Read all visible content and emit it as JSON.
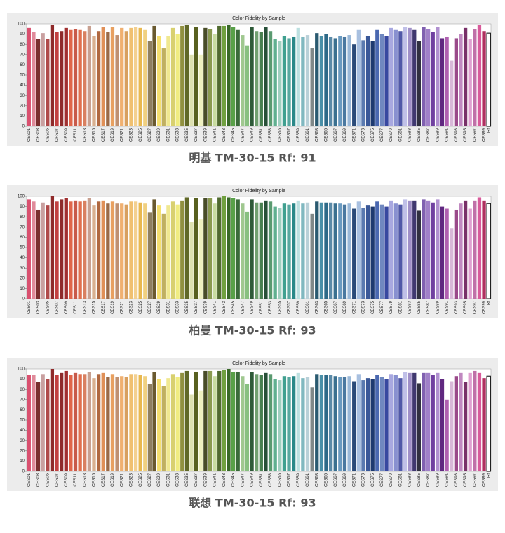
{
  "chart_data": [
    {
      "type": "bar",
      "title": "Color Fidelity by Sample",
      "caption": "明基 TM-30-15 Rf: 91",
      "categories": [
        "CES01",
        null,
        "CES03",
        null,
        "CES05",
        null,
        "CES07",
        null,
        "CES09",
        null,
        "CES11",
        null,
        "CES13",
        null,
        "CES15",
        null,
        "CES17",
        null,
        "CES19",
        null,
        "CES21",
        null,
        "CES23",
        null,
        "CES25",
        null,
        "CES27",
        null,
        "CES29",
        null,
        "CES31",
        null,
        "CES33",
        null,
        "CES35",
        null,
        "CES37",
        null,
        "CES39",
        null,
        "CES41",
        null,
        "CES43",
        null,
        "CES45",
        null,
        "CES47",
        null,
        "CES49",
        null,
        "CES51",
        null,
        "CES53",
        null,
        "CES55",
        null,
        "CES57",
        null,
        "CES59",
        null,
        "CES61",
        null,
        "CES63",
        null,
        "CES65",
        null,
        "CES67",
        null,
        "CES69",
        null,
        "CES71",
        null,
        "CES73",
        null,
        "CES75",
        null,
        "CES77",
        null,
        "CES79",
        null,
        "CES81",
        null,
        "CES83",
        null,
        "CES85",
        null,
        "CES87",
        null,
        "CES89",
        null,
        "CES91",
        null,
        "CES93",
        null,
        "CES95",
        null,
        "CES97",
        null,
        "CES99",
        "Rf"
      ],
      "values": [
        96,
        92,
        85,
        91,
        85,
        99,
        92,
        93,
        96,
        94,
        95,
        94,
        93,
        98,
        88,
        93,
        97,
        92,
        97,
        89,
        96,
        93,
        96,
        97,
        96,
        94,
        83,
        98,
        88,
        76,
        88,
        96,
        90,
        98,
        99,
        70,
        97,
        70,
        96,
        95,
        90,
        98,
        98,
        99,
        97,
        94,
        89,
        79,
        97,
        93,
        92,
        97,
        93,
        85,
        83,
        88,
        86,
        87,
        96,
        87,
        89,
        76,
        91,
        88,
        90,
        87,
        86,
        88,
        87,
        89,
        80,
        94,
        84,
        88,
        83,
        94,
        90,
        88,
        96,
        94,
        93,
        97,
        96,
        94,
        83,
        97,
        95,
        92,
        97,
        86,
        87,
        64,
        86,
        90,
        96,
        85,
        95,
        99,
        93,
        91
      ],
      "colors": [
        "#d9506f",
        "#e08a9a",
        "#7a2e2e",
        "#c9a0a0",
        "#b04a4a",
        "#8f2a2a",
        "#c24040",
        "#8e2b2b",
        "#a03030",
        "#e0664a",
        "#c85a4a",
        "#e0704e",
        "#d98060",
        "#c8a090",
        "#d8b090",
        "#b06840",
        "#e09058",
        "#9a6a48",
        "#e8a060",
        "#c09070",
        "#f0b070",
        "#d8a060",
        "#f0c070",
        "#f3d090",
        "#e8b850",
        "#f0d080",
        "#908060",
        "#6a5a30",
        "#f5e070",
        "#c0b060",
        "#f0e890",
        "#d8d070",
        "#f0ec80",
        "#909040",
        "#606828",
        "#dde0b0",
        "#586020",
        "#eef0c0",
        "#484c28",
        "#8a9a50",
        "#c8dca0",
        "#506a30",
        "#70a040",
        "#386828",
        "#58a048",
        "#3a6a3a",
        "#a0c890",
        "#88c080",
        "#2e5a38",
        "#70a070",
        "#488050",
        "#285038",
        "#5a9a70",
        "#60b090",
        "#a0d0c0",
        "#40a090",
        "#58a8a0",
        "#2a8888",
        "#bce0e0",
        "#80b8c0",
        "#b8d0d8",
        "#808888",
        "#2a5a70",
        "#4a90a8",
        "#2e6a88",
        "#5a8aa8",
        "#3a7090",
        "#6a9ac0",
        "#4a78a0",
        "#9ab8d8",
        "#2a4a78",
        "#a8c0e0",
        "#5a7ab0",
        "#3a5898",
        "#1e3a70",
        "#4a68b0",
        "#7088c0",
        "#3848a0",
        "#a8a8e0",
        "#8890d0",
        "#5058a8",
        "#c0c0e8",
        "#a090c8",
        "#403870",
        "#303040",
        "#8060b0",
        "#a080c8",
        "#7040a0",
        "#b090d0",
        "#602880",
        "#b060b0",
        "#d8b8d8",
        "#9a4a8a",
        "#c088c0",
        "#783068",
        "#e0a0d0",
        "#c070a8",
        "#d85a9a",
        "#b03060",
        "#ffffff"
      ],
      "ylim": [
        0,
        100
      ],
      "yticks": [
        0,
        10,
        20,
        30,
        40,
        50,
        60,
        70,
        80,
        90,
        100
      ]
    },
    {
      "type": "bar",
      "title": "Color Fidelity by Sample",
      "caption": "柏曼 TM-30-15 Rf: 93",
      "categories": [
        "CES01",
        null,
        "CES03",
        null,
        "CES05",
        null,
        "CES07",
        null,
        "CES09",
        null,
        "CES11",
        null,
        "CES13",
        null,
        "CES15",
        null,
        "CES17",
        null,
        "CES19",
        null,
        "CES21",
        null,
        "CES23",
        null,
        "CES25",
        null,
        "CES27",
        null,
        "CES29",
        null,
        "CES31",
        null,
        "CES33",
        null,
        "CES35",
        null,
        "CES37",
        null,
        "CES39",
        null,
        "CES41",
        null,
        "CES43",
        null,
        "CES45",
        null,
        "CES47",
        null,
        "CES49",
        null,
        "CES51",
        null,
        "CES53",
        null,
        "CES55",
        null,
        "CES57",
        null,
        "CES59",
        null,
        "CES61",
        null,
        "CES63",
        null,
        "CES65",
        null,
        "CES67",
        null,
        "CES69",
        null,
        "CES71",
        null,
        "CES73",
        null,
        "CES75",
        null,
        "CES77",
        null,
        "CES79",
        null,
        "CES81",
        null,
        "CES83",
        null,
        "CES85",
        null,
        "CES87",
        null,
        "CES89",
        null,
        "CES91",
        null,
        "CES93",
        null,
        "CES95",
        null,
        "CES97",
        null,
        "CES99",
        "Rf"
      ],
      "values": [
        97,
        95,
        87,
        94,
        91,
        100,
        95,
        97,
        98,
        95,
        96,
        95,
        96,
        98,
        91,
        95,
        96,
        93,
        95,
        93,
        93,
        92,
        95,
        95,
        94,
        93,
        84,
        97,
        91,
        83,
        91,
        95,
        92,
        96,
        99,
        75,
        98,
        78,
        98,
        98,
        93,
        99,
        100,
        99,
        98,
        97,
        93,
        85,
        97,
        94,
        94,
        96,
        95,
        90,
        89,
        93,
        92,
        93,
        96,
        93,
        94,
        83,
        95,
        94,
        94,
        94,
        93,
        93,
        92,
        93,
        88,
        95,
        89,
        91,
        90,
        95,
        92,
        90,
        96,
        93,
        92,
        97,
        96,
        96,
        86,
        97,
        96,
        94,
        97,
        90,
        88,
        69,
        87,
        93,
        96,
        88,
        96,
        99,
        96,
        93
      ],
      "colors": [
        "#d9506f",
        "#e08a9a",
        "#7a2e2e",
        "#c9a0a0",
        "#b04a4a",
        "#8f2a2a",
        "#c24040",
        "#8e2b2b",
        "#a03030",
        "#e0664a",
        "#c85a4a",
        "#e0704e",
        "#d98060",
        "#c8a090",
        "#d8b090",
        "#b06840",
        "#e09058",
        "#9a6a48",
        "#e8a060",
        "#c09070",
        "#f0b070",
        "#d8a060",
        "#f0c070",
        "#f3d090",
        "#e8b850",
        "#f0d080",
        "#908060",
        "#6a5a30",
        "#f5e070",
        "#c0b060",
        "#f0e890",
        "#d8d070",
        "#f0ec80",
        "#909040",
        "#606828",
        "#dde0b0",
        "#586020",
        "#eef0c0",
        "#484c28",
        "#8a9a50",
        "#c8dca0",
        "#506a30",
        "#70a040",
        "#386828",
        "#58a048",
        "#3a6a3a",
        "#a0c890",
        "#88c080",
        "#2e5a38",
        "#70a070",
        "#488050",
        "#285038",
        "#5a9a70",
        "#60b090",
        "#a0d0c0",
        "#40a090",
        "#58a8a0",
        "#2a8888",
        "#bce0e0",
        "#80b8c0",
        "#b8d0d8",
        "#808888",
        "#2a5a70",
        "#4a90a8",
        "#2e6a88",
        "#5a8aa8",
        "#3a7090",
        "#6a9ac0",
        "#4a78a0",
        "#9ab8d8",
        "#2a4a78",
        "#a8c0e0",
        "#5a7ab0",
        "#3a5898",
        "#1e3a70",
        "#4a68b0",
        "#7088c0",
        "#3848a0",
        "#a8a8e0",
        "#8890d0",
        "#5058a8",
        "#c0c0e8",
        "#a090c8",
        "#403870",
        "#303040",
        "#8060b0",
        "#a080c8",
        "#7040a0",
        "#b090d0",
        "#602880",
        "#b060b0",
        "#d8b8d8",
        "#9a4a8a",
        "#c088c0",
        "#783068",
        "#e0a0d0",
        "#c070a8",
        "#d85a9a",
        "#b03060",
        "#ffffff"
      ],
      "ylim": [
        0,
        100
      ],
      "yticks": [
        0,
        10,
        20,
        30,
        40,
        50,
        60,
        70,
        80,
        90,
        100
      ]
    },
    {
      "type": "bar",
      "title": "Color Fidelity by Sample",
      "caption": "联想 TM-30-15 Rf: 93",
      "categories": [
        "CES01",
        null,
        "CES03",
        null,
        "CES05",
        null,
        "CES07",
        null,
        "CES09",
        null,
        "CES11",
        null,
        "CES13",
        null,
        "CES15",
        null,
        "CES17",
        null,
        "CES19",
        null,
        "CES21",
        null,
        "CES23",
        null,
        "CES25",
        null,
        "CES27",
        null,
        "CES29",
        null,
        "CES31",
        null,
        "CES33",
        null,
        "CES35",
        null,
        "CES37",
        null,
        "CES39",
        null,
        "CES41",
        null,
        "CES43",
        null,
        "CES45",
        null,
        "CES47",
        null,
        "CES49",
        null,
        "CES51",
        null,
        "CES53",
        null,
        "CES55",
        null,
        "CES57",
        null,
        "CES59",
        null,
        "CES61",
        null,
        "CES63",
        null,
        "CES65",
        null,
        "CES67",
        null,
        "CES69",
        null,
        "CES71",
        null,
        "CES73",
        null,
        "CES75",
        null,
        "CES77",
        null,
        "CES79",
        null,
        "CES81",
        null,
        "CES83",
        null,
        "CES85",
        null,
        "CES87",
        null,
        "CES89",
        null,
        "CES91",
        null,
        "CES93",
        null,
        "CES95",
        null,
        "CES97",
        null,
        "CES99",
        "Rf"
      ],
      "values": [
        94,
        94,
        87,
        95,
        90,
        100,
        94,
        96,
        98,
        94,
        96,
        95,
        95,
        97,
        91,
        95,
        96,
        92,
        95,
        92,
        93,
        92,
        95,
        95,
        94,
        93,
        85,
        97,
        90,
        83,
        91,
        95,
        92,
        96,
        98,
        75,
        97,
        79,
        98,
        98,
        93,
        98,
        99,
        100,
        97,
        97,
        93,
        85,
        97,
        95,
        94,
        96,
        95,
        90,
        89,
        93,
        92,
        93,
        96,
        91,
        92,
        82,
        95,
        94,
        94,
        94,
        93,
        92,
        92,
        93,
        88,
        95,
        89,
        91,
        90,
        94,
        92,
        90,
        95,
        94,
        91,
        97,
        96,
        96,
        86,
        96,
        96,
        94,
        96,
        90,
        70,
        88,
        93,
        96,
        87,
        96,
        98,
        96,
        91,
        93
      ],
      "colors": [
        "#d9506f",
        "#e08a9a",
        "#7a2e2e",
        "#c9a0a0",
        "#b04a4a",
        "#8f2a2a",
        "#c24040",
        "#8e2b2b",
        "#a03030",
        "#e0664a",
        "#c85a4a",
        "#e0704e",
        "#d98060",
        "#c8a090",
        "#d8b090",
        "#b06840",
        "#e09058",
        "#9a6a48",
        "#e8a060",
        "#c09070",
        "#f0b070",
        "#d8a060",
        "#f0c070",
        "#f3d090",
        "#e8b850",
        "#f0d080",
        "#908060",
        "#6a5a30",
        "#f5e070",
        "#c0b060",
        "#f0e890",
        "#d8d070",
        "#f0ec80",
        "#909040",
        "#606828",
        "#dde0b0",
        "#586020",
        "#eef0c0",
        "#484c28",
        "#8a9a50",
        "#c8dca0",
        "#506a30",
        "#70a040",
        "#386828",
        "#58a048",
        "#3a6a3a",
        "#a0c890",
        "#88c080",
        "#2e5a38",
        "#70a070",
        "#488050",
        "#285038",
        "#5a9a70",
        "#60b090",
        "#a0d0c0",
        "#40a090",
        "#58a8a0",
        "#2a8888",
        "#bce0e0",
        "#80b8c0",
        "#b8d0d8",
        "#808888",
        "#2a5a70",
        "#4a90a8",
        "#2e6a88",
        "#5a8aa8",
        "#3a7090",
        "#6a9ac0",
        "#4a78a0",
        "#9ab8d8",
        "#2a4a78",
        "#a8c0e0",
        "#5a7ab0",
        "#3a5898",
        "#1e3a70",
        "#4a68b0",
        "#7088c0",
        "#3848a0",
        "#a8a8e0",
        "#8890d0",
        "#5058a8",
        "#c0c0e8",
        "#a090c8",
        "#403870",
        "#303040",
        "#8060b0",
        "#a080c8",
        "#7040a0",
        "#b090d0",
        "#602880",
        "#b060b0",
        "#d8b8d8",
        "#9a4a8a",
        "#c088c0",
        "#783068",
        "#e0a0d0",
        "#c070a8",
        "#d85a9a",
        "#b03060",
        "#ffffff"
      ],
      "ylim": [
        0,
        100
      ],
      "yticks": [
        0,
        10,
        20,
        30,
        40,
        50,
        60,
        70,
        80,
        90,
        100
      ]
    }
  ]
}
